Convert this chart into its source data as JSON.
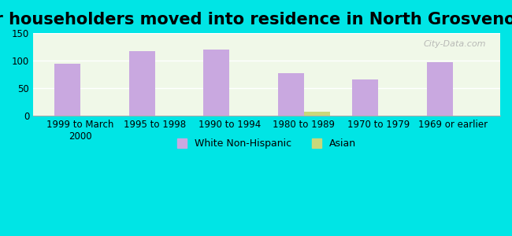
{
  "title": "Year householders moved into residence in North Grosvenor Dale",
  "categories": [
    "1999 to March\n2000",
    "1995 to 1998",
    "1990 to 1994",
    "1980 to 1989",
    "1970 to 1979",
    "1969 or earlier"
  ],
  "white_values": [
    95,
    117,
    120,
    77,
    66,
    97
  ],
  "asian_values": [
    0,
    0,
    0,
    8,
    0,
    0
  ],
  "white_color": "#c9a8e0",
  "asian_color": "#c8d87a",
  "bg_color": "#00e5e5",
  "plot_bg_color": "#f0f8e8",
  "ylim": [
    0,
    150
  ],
  "yticks": [
    0,
    50,
    100,
    150
  ],
  "bar_width": 0.35,
  "watermark": "City-Data.com",
  "legend_white": "White Non-Hispanic",
  "legend_asian": "Asian",
  "title_fontsize": 15,
  "tick_fontsize": 8.5,
  "legend_fontsize": 9
}
